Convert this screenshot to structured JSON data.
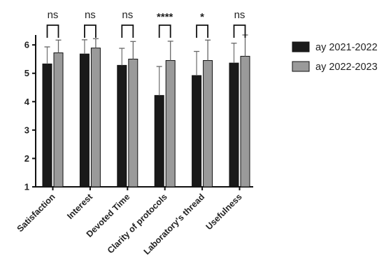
{
  "chart_data": {
    "type": "bar",
    "categories": [
      "Satisfaction",
      "Interest",
      "Devoted Time",
      "Clarity of protocols",
      "Laboratory's thread",
      "Usefulness"
    ],
    "series": [
      {
        "name": "ay 2021-2022",
        "values": [
          5.33,
          5.68,
          5.28,
          4.22,
          4.92,
          5.36
        ],
        "errors": [
          0.6,
          0.5,
          0.6,
          1.02,
          0.85,
          0.7
        ],
        "color": "#1a1a1a"
      },
      {
        "name": "ay 2022-2023",
        "values": [
          5.72,
          5.89,
          5.5,
          5.45,
          5.45,
          5.6
        ],
        "errors": [
          0.45,
          0.33,
          0.62,
          0.68,
          0.72,
          0.75
        ],
        "color": "#9a9a9a"
      }
    ],
    "significance": [
      "ns",
      "ns",
      "ns",
      "****",
      "*",
      "ns"
    ],
    "yticks": [
      1,
      2,
      3,
      4,
      5,
      6
    ],
    "ylim": [
      1,
      6.3
    ],
    "title": "",
    "xlabel": "",
    "ylabel": "",
    "legend_position": "right"
  }
}
